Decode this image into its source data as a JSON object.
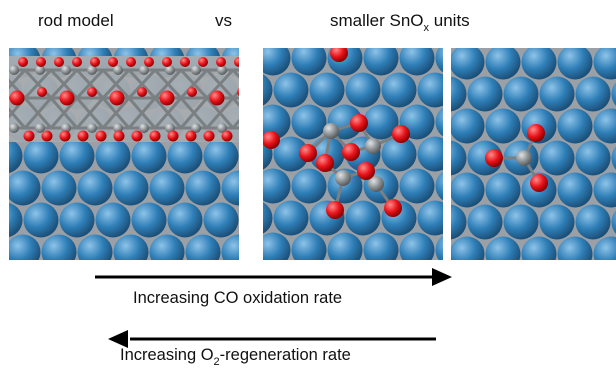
{
  "labels": {
    "rod_model": "rod model",
    "vs": "vs",
    "smaller_prefix": "smaller SnO",
    "smaller_sub": "x",
    "smaller_suffix": " units"
  },
  "arrows": {
    "forward_text": "Increasing CO oxidation rate",
    "backward_prefix": "Increasing O",
    "backward_sub": "2",
    "backward_suffix": "-regeneration rate"
  },
  "colors": {
    "surface_atom": "#2f7fb8",
    "subsurface_atom": "#9aa0a6",
    "oxygen": "#e8141b",
    "tin": "#8f9497",
    "arrow": "#000000"
  }
}
